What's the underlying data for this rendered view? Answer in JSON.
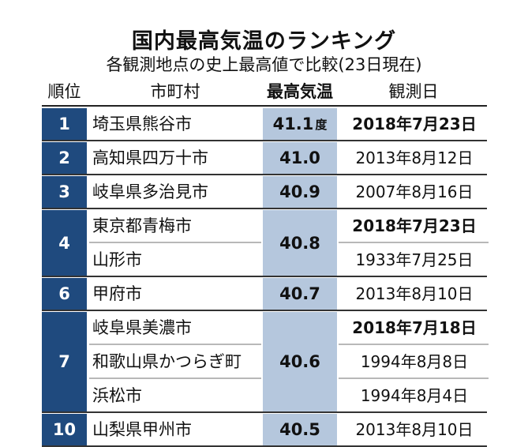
{
  "title": "国内最高気温のランキング",
  "subtitle": "各観測地点の史上最高値で比較(23日現在)",
  "headers": {
    "rank": "順位",
    "city": "市町村",
    "temp": "最高気温",
    "date": "観測日"
  },
  "colors": {
    "rank_bg": "#1f4a7e",
    "temp_bg": "#b5c7dd"
  },
  "groups": [
    {
      "rank": "1",
      "temp": "41.1",
      "unit": "度",
      "entries": [
        {
          "city": "埼玉県熊谷市",
          "date": "2018年7月23日",
          "bold": true
        }
      ]
    },
    {
      "rank": "2",
      "temp": "41.0",
      "entries": [
        {
          "city": "高知県四万十市",
          "date": "2013年8月12日",
          "bold": false
        }
      ]
    },
    {
      "rank": "3",
      "temp": "40.9",
      "entries": [
        {
          "city": "岐阜県多治見市",
          "date": "2007年8月16日",
          "bold": false
        }
      ]
    },
    {
      "rank": "4",
      "temp": "40.8",
      "entries": [
        {
          "city": "東京都青梅市",
          "date": "2018年7月23日",
          "bold": true
        },
        {
          "city": "山形市",
          "date": "1933年7月25日",
          "bold": false
        }
      ]
    },
    {
      "rank": "6",
      "temp": "40.7",
      "entries": [
        {
          "city": "甲府市",
          "date": "2013年8月10日",
          "bold": false
        }
      ]
    },
    {
      "rank": "7",
      "temp": "40.6",
      "entries": [
        {
          "city": "岐阜県美濃市",
          "date": "2018年7月18日",
          "bold": true
        },
        {
          "city": "和歌山県かつらぎ町",
          "date": "1994年8月8日",
          "bold": false
        },
        {
          "city": "浜松市",
          "date": "1994年8月4日",
          "bold": false
        }
      ]
    },
    {
      "rank": "10",
      "temp": "40.5",
      "entries": [
        {
          "city": "山梨県甲州市",
          "date": "2013年8月10日",
          "bold": false
        }
      ]
    }
  ]
}
